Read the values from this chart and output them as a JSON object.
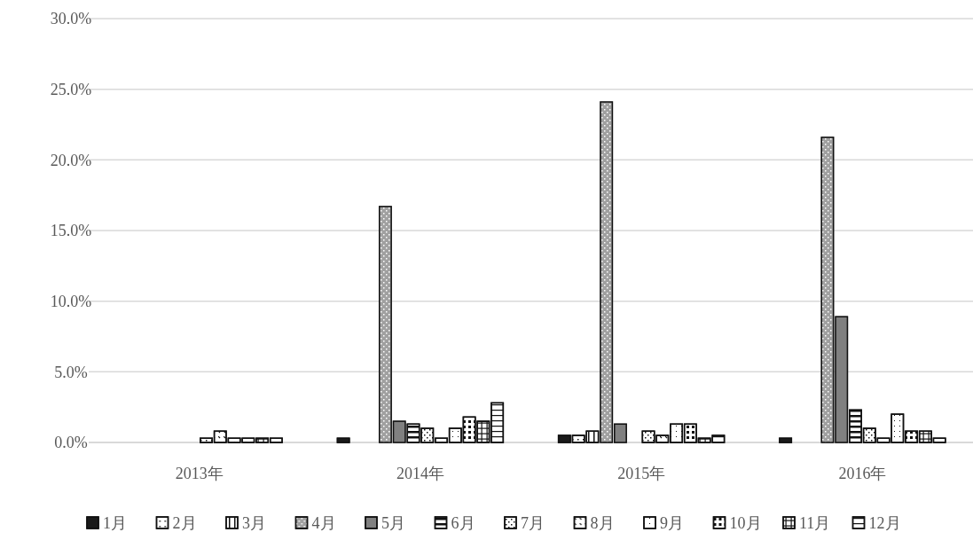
{
  "chart_data": {
    "type": "bar",
    "categories": [
      "2013年",
      "2014年",
      "2015年",
      "2016年"
    ],
    "series": [
      {
        "name": "1月",
        "color": "#1a1a1a",
        "values": [
          0,
          0.3,
          0.5,
          0.3
        ]
      },
      {
        "name": "2月",
        "color": "#ffffff",
        "values": [
          0,
          0,
          0.5,
          0
        ]
      },
      {
        "name": "3月",
        "color": "#ffffff",
        "values": [
          0,
          0,
          0.8,
          0
        ]
      },
      {
        "name": "4月",
        "color": "#a0a0a0",
        "values": [
          0,
          16.7,
          24.1,
          21.6
        ]
      },
      {
        "name": "5月",
        "color": "#808080",
        "values": [
          0,
          1.5,
          1.3,
          8.9
        ]
      },
      {
        "name": "6月",
        "color": "#ffffff",
        "values": [
          0,
          1.3,
          0,
          2.3
        ]
      },
      {
        "name": "7月",
        "color": "#ffffff",
        "values": [
          0.3,
          1.0,
          0.8,
          1.0
        ]
      },
      {
        "name": "8月",
        "color": "#ffffff",
        "values": [
          0.8,
          0.3,
          0.5,
          0.3
        ]
      },
      {
        "name": "9月",
        "color": "#ffffff",
        "values": [
          0.3,
          1.0,
          1.3,
          2.0
        ]
      },
      {
        "name": "10月",
        "color": "#ffffff",
        "values": [
          0.3,
          1.8,
          1.3,
          0.8
        ]
      },
      {
        "name": "11月",
        "color": "#ffffff",
        "values": [
          0.3,
          1.5,
          0.3,
          0.8
        ]
      },
      {
        "name": "12月",
        "color": "#ffffff",
        "values": [
          0.3,
          2.8,
          0.5,
          0.3
        ]
      }
    ],
    "ylim": [
      0,
      30
    ],
    "yticks": [
      {
        "value": 0,
        "label": "0.0%"
      },
      {
        "value": 5,
        "label": "5.0%"
      },
      {
        "value": 10,
        "label": "10.0%"
      },
      {
        "value": 15,
        "label": "15.0%"
      },
      {
        "value": 20,
        "label": "20.0%"
      },
      {
        "value": 25,
        "label": "25.0%"
      },
      {
        "value": 30,
        "label": "30.0%"
      }
    ],
    "grid": "y",
    "legend": "bottom"
  }
}
